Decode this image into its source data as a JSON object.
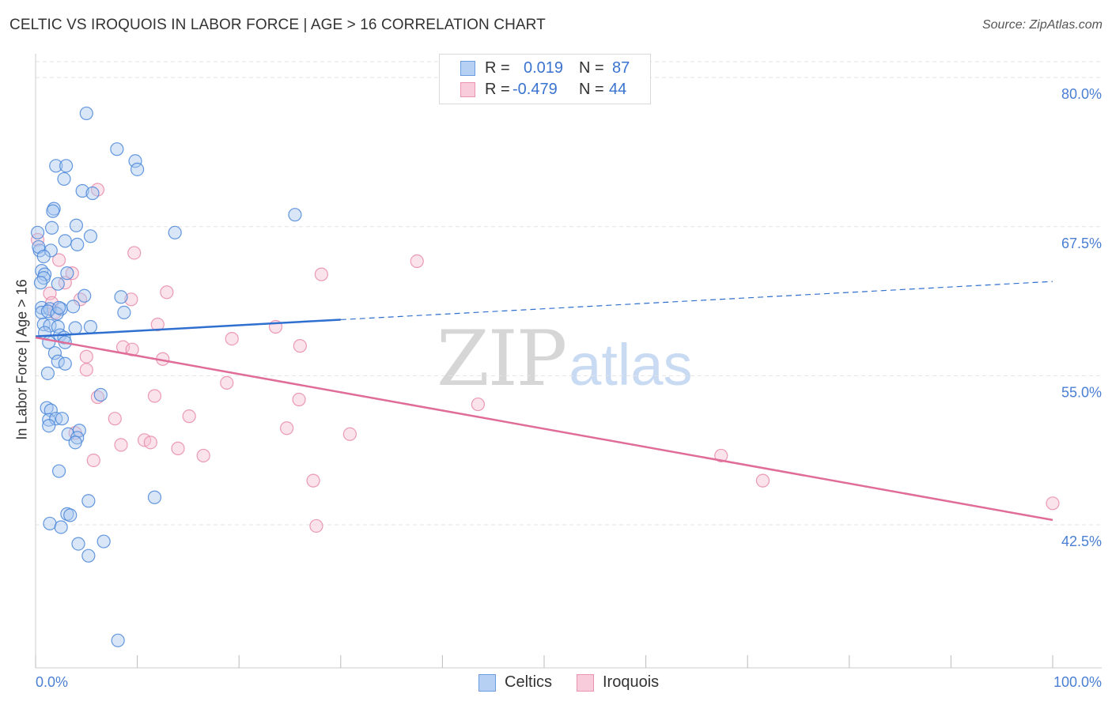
{
  "title": "CELTIC VS IROQUOIS IN LABOR FORCE | AGE > 16 CORRELATION CHART",
  "source": "Source: ZipAtlas.com",
  "watermark": {
    "zip": "ZIP",
    "atlas": "atlas"
  },
  "legend": {
    "rows": [
      {
        "r_label": "R =",
        "r_value": "0.019",
        "n_label": "N =",
        "n_value": "87"
      },
      {
        "r_label": "R =",
        "r_value": "-0.479",
        "n_label": "N =",
        "n_value": "44"
      }
    ]
  },
  "bottom_legend": [
    "Celtics",
    "Iroquois"
  ],
  "colors": {
    "celtics_fill": "#a9c8f0",
    "celtics_stroke": "#4a86d8",
    "celtics_line": "#2f6fcf",
    "iroquois_fill": "#f7c2d3",
    "iroquois_stroke": "#e88aa8",
    "iroquois_line": "#e06c98",
    "tick_text": "#4a7fd4",
    "grid": "#e3e3e3"
  },
  "chart_data": {
    "type": "scatter",
    "title": "CELTIC VS IROQUOIS IN LABOR FORCE | AGE > 16 CORRELATION CHART",
    "xlabel": "",
    "ylabel": "In Labor Force | Age > 16",
    "xlim": [
      0,
      100
    ],
    "ylim": [
      30.5,
      82
    ],
    "x_tick_labels": [
      "0.0%",
      "100.0%"
    ],
    "y_ticks": [
      42.5,
      55.0,
      67.5,
      80.0
    ],
    "y_tick_labels": [
      "42.5%",
      "55.0%",
      "67.5%",
      "80.0%"
    ],
    "grid": true,
    "legend_position": "top-center",
    "series": [
      {
        "name": "Celtics",
        "r": 0.019,
        "n": 87,
        "trend": {
          "x": [
            0,
            30,
            100
          ],
          "y": [
            58.3,
            59.7,
            62.9
          ],
          "solid_until": 30
        },
        "points": [
          [
            5,
            77
          ],
          [
            8,
            74
          ],
          [
            9.8,
            73
          ],
          [
            2,
            72.6
          ],
          [
            3,
            72.6
          ],
          [
            10,
            72.3
          ],
          [
            2.8,
            71.5
          ],
          [
            4.6,
            70.5
          ],
          [
            5.6,
            70.3
          ],
          [
            1.8,
            69
          ],
          [
            1.7,
            68.8
          ],
          [
            25.5,
            68.5
          ],
          [
            1.6,
            67.4
          ],
          [
            4,
            67.6
          ],
          [
            13.7,
            67
          ],
          [
            5.4,
            66.7
          ],
          [
            2.9,
            66.3
          ],
          [
            4.1,
            66
          ],
          [
            0.2,
            67
          ],
          [
            0.4,
            65.5
          ],
          [
            0.3,
            65.8
          ],
          [
            1.5,
            65.5
          ],
          [
            0.8,
            65
          ],
          [
            3.1,
            63.6
          ],
          [
            0.6,
            63.8
          ],
          [
            0.9,
            63.5
          ],
          [
            0.8,
            63.2
          ],
          [
            0.5,
            62.8
          ],
          [
            2.2,
            62.7
          ],
          [
            4.8,
            61.7
          ],
          [
            8.4,
            61.6
          ],
          [
            2.5,
            60.6
          ],
          [
            0.6,
            60.7
          ],
          [
            0.6,
            60.3
          ],
          [
            1.4,
            60.6
          ],
          [
            1.2,
            60.4
          ],
          [
            2.1,
            60.2
          ],
          [
            2.3,
            60.7
          ],
          [
            3.7,
            60.8
          ],
          [
            8.7,
            60.3
          ],
          [
            0.8,
            59.3
          ],
          [
            1.4,
            59.2
          ],
          [
            2.2,
            59.1
          ],
          [
            3.9,
            59
          ],
          [
            5.4,
            59.1
          ],
          [
            0.9,
            58.6
          ],
          [
            2.4,
            58.4
          ],
          [
            1.3,
            57.8
          ],
          [
            2.8,
            58.2
          ],
          [
            2.9,
            57.8
          ],
          [
            1.9,
            56.9
          ],
          [
            2.2,
            56.2
          ],
          [
            2.9,
            56
          ],
          [
            1.2,
            55.2
          ],
          [
            6.4,
            53.4
          ],
          [
            1.1,
            52.3
          ],
          [
            1.5,
            52.1
          ],
          [
            1.3,
            51.3
          ],
          [
            2,
            51.4
          ],
          [
            2.6,
            51.4
          ],
          [
            1.3,
            50.8
          ],
          [
            3.2,
            50.1
          ],
          [
            4.3,
            50.4
          ],
          [
            4.1,
            49.8
          ],
          [
            3.9,
            49.4
          ],
          [
            2.3,
            47
          ],
          [
            5.2,
            44.5
          ],
          [
            11.7,
            44.8
          ],
          [
            3.1,
            43.4
          ],
          [
            3.4,
            43.3
          ],
          [
            1.4,
            42.6
          ],
          [
            2.5,
            42.3
          ],
          [
            6.7,
            41.1
          ],
          [
            4.2,
            40.9
          ],
          [
            5.2,
            39.9
          ],
          [
            8.1,
            32.8
          ]
        ]
      },
      {
        "name": "Iroquois",
        "r": -0.479,
        "n": 44,
        "trend": {
          "x": [
            0,
            100
          ],
          "y": [
            58.2,
            42.9
          ]
        },
        "points": [
          [
            0.2,
            66.4
          ],
          [
            6.1,
            70.6
          ],
          [
            9.7,
            65.3
          ],
          [
            2.3,
            64.7
          ],
          [
            3.6,
            63.6
          ],
          [
            37.5,
            64.6
          ],
          [
            28.1,
            63.5
          ],
          [
            2.9,
            62.8
          ],
          [
            1.4,
            61.9
          ],
          [
            12.9,
            62
          ],
          [
            9.4,
            61.4
          ],
          [
            4.4,
            61.4
          ],
          [
            1.6,
            61.1
          ],
          [
            1.9,
            60.3
          ],
          [
            12,
            59.3
          ],
          [
            23.6,
            59.1
          ],
          [
            19.3,
            58.1
          ],
          [
            26,
            57.5
          ],
          [
            8.6,
            57.4
          ],
          [
            9.5,
            57.2
          ],
          [
            5,
            56.6
          ],
          [
            12.5,
            56.4
          ],
          [
            5,
            55.5
          ],
          [
            18.8,
            54.4
          ],
          [
            11.7,
            53.3
          ],
          [
            6.1,
            53.2
          ],
          [
            25.9,
            53
          ],
          [
            43.5,
            52.6
          ],
          [
            15.1,
            51.6
          ],
          [
            7.8,
            51.4
          ],
          [
            24.7,
            50.6
          ],
          [
            3.9,
            50.2
          ],
          [
            30.9,
            50.1
          ],
          [
            10.7,
            49.6
          ],
          [
            11.3,
            49.4
          ],
          [
            8.4,
            49.2
          ],
          [
            14,
            48.9
          ],
          [
            16.5,
            48.3
          ],
          [
            5.7,
            47.9
          ],
          [
            67.4,
            48.3
          ],
          [
            27.3,
            46.2
          ],
          [
            71.5,
            46.2
          ],
          [
            100,
            44.3
          ],
          [
            27.6,
            42.4
          ]
        ]
      }
    ]
  }
}
